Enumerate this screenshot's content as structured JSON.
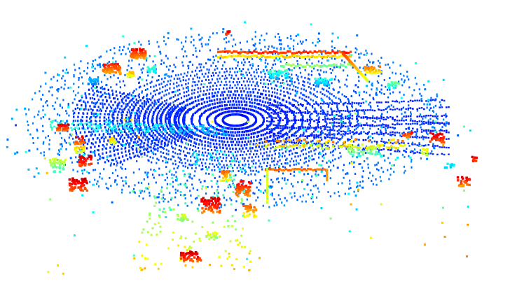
{
  "scene": {
    "kind": "lidar-point-cloud",
    "background": "#ffffff",
    "colormap": "jet",
    "colormap_stops": [
      "#00007f",
      "#0000ff",
      "#007fff",
      "#00ffff",
      "#7fff7f",
      "#ffff00",
      "#ff7f00",
      "#ff0000",
      "#7f0000"
    ],
    "coloring": "height"
  }
}
